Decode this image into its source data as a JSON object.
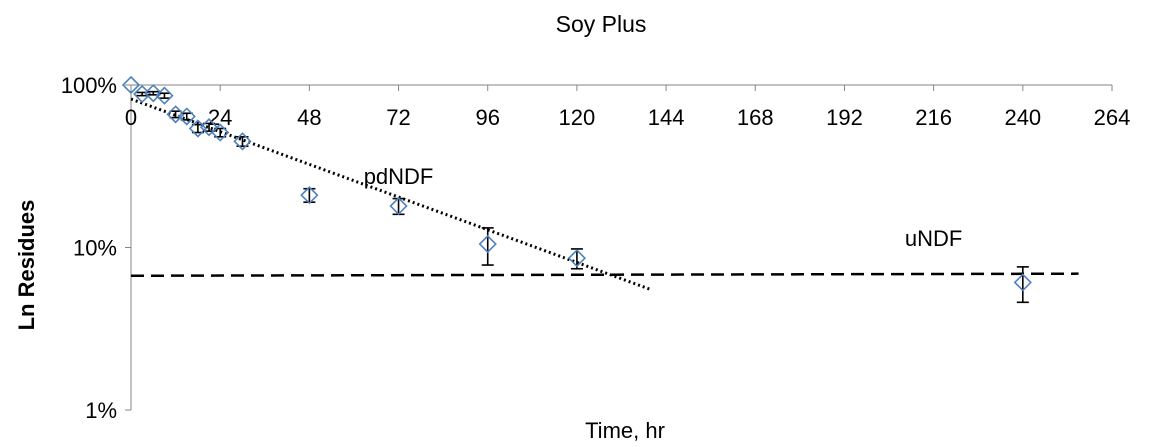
{
  "chart_data": {
    "type": "scatter",
    "title": "Soy Plus",
    "xlabel": "Time, hr",
    "ylabel": "Ln Residues",
    "xlim": [
      0,
      264
    ],
    "x_ticks": [
      "0",
      "24",
      "48",
      "72",
      "96",
      "120",
      "144",
      "168",
      "192",
      "216",
      "240",
      "264"
    ],
    "x_tick_values": [
      0,
      24,
      48,
      72,
      96,
      120,
      144,
      168,
      192,
      216,
      240,
      264
    ],
    "y_scale": "log",
    "ylim": [
      1,
      100
    ],
    "y_ticks": [
      "1%",
      "10%",
      "100%"
    ],
    "y_tick_values": [
      1,
      10,
      100
    ],
    "grid": false,
    "legend": "none",
    "marker": "diamond-open",
    "marker_color": "#4f81bd",
    "series": [
      {
        "x": [
          0,
          3,
          6,
          9,
          12,
          15,
          18,
          21,
          24,
          30,
          48,
          72,
          96,
          120,
          240
        ],
        "y": [
          100,
          88,
          89,
          86,
          66,
          64,
          54,
          55,
          51,
          45,
          21,
          18,
          10.5,
          8.6,
          6.1
        ],
        "err_low": [
          0,
          2,
          2,
          3,
          3,
          3,
          3,
          3,
          3,
          3,
          2,
          2,
          2.7,
          1.2,
          1.5
        ],
        "err_high": [
          0,
          2,
          2,
          3,
          3,
          3,
          3,
          3,
          3,
          3,
          2,
          2,
          2.7,
          1.2,
          1.5
        ]
      }
    ],
    "trendlines": [
      {
        "label": "pdNDF",
        "style": "dotted",
        "x": [
          0,
          140
        ],
        "y": [
          82,
          5.5
        ]
      },
      {
        "label": "uNDF",
        "style": "dashed",
        "x": [
          0,
          255
        ],
        "y": [
          6.7,
          6.9
        ]
      }
    ]
  }
}
